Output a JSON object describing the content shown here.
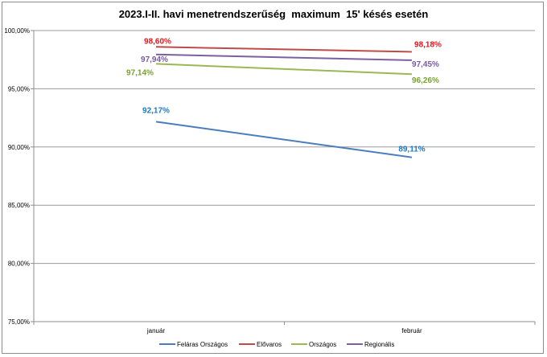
{
  "chart_data": {
    "type": "line",
    "title": "2023.I-II. havi menetrendszerűség  maximum  15' késés esetén",
    "categories": [
      "január",
      "február"
    ],
    "ylim": [
      75,
      100
    ],
    "ytick_step": 5,
    "ytick_labels": [
      "75,00%",
      "80,00%",
      "85,00%",
      "90,00%",
      "95,00%",
      "100,00%"
    ],
    "grid": true,
    "legend_position": "bottom",
    "series": [
      {
        "name": "Feláras Országos",
        "color": "#4a7ebb",
        "values": [
          92.17,
          89.11
        ],
        "labels": [
          "92,17%",
          "89,11%"
        ],
        "label_color": "#1f79c4"
      },
      {
        "name": "Elővaros",
        "color": "#be4b48",
        "values": [
          98.6,
          98.18
        ],
        "labels": [
          "98,60%",
          "98,18%"
        ],
        "label_color": "#e8161b"
      },
      {
        "name": "Országos",
        "color": "#98b954",
        "values": [
          97.14,
          96.26
        ],
        "labels": [
          "97,14%",
          "96,26%"
        ],
        "label_color": "#78a22f"
      },
      {
        "name": "Regionális",
        "color": "#7d5fa0",
        "values": [
          97.94,
          97.45
        ],
        "labels": [
          "97,94%",
          "97,45%"
        ],
        "label_color": "#7a5aa0"
      }
    ]
  }
}
